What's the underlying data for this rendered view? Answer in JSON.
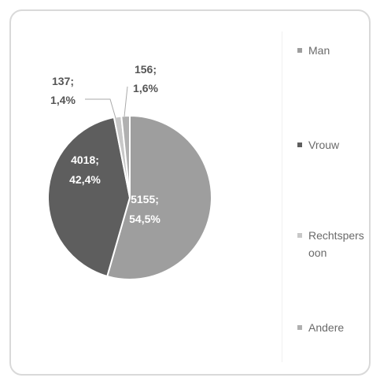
{
  "chart_data": {
    "type": "pie",
    "title": "",
    "legend_position": "right",
    "slices": [
      {
        "name": "Man",
        "value": 5155,
        "percent_label": "54,5%",
        "value_label": "5155;",
        "color": "#9e9e9e",
        "label_color": "#ffffff"
      },
      {
        "name": "Vrouw",
        "value": 4018,
        "percent_label": "42,4%",
        "value_label": "4018;",
        "color": "#5e5e5e",
        "label_color": "#ffffff"
      },
      {
        "name": "Rechtspersoon",
        "value": 137,
        "percent_label": "1,4%",
        "value_label": "137;",
        "color": "#c8c8c8",
        "label_color": "#555555"
      },
      {
        "name": "Andere",
        "value": 156,
        "percent_label": "1,6%",
        "value_label": "156;",
        "color": "#b0b0b0",
        "label_color": "#555555"
      }
    ]
  },
  "legend": {
    "items": [
      {
        "label": "Man",
        "color": "#9e9e9e"
      },
      {
        "label": "Vrouw",
        "color": "#5e5e5e"
      },
      {
        "label": "Rechtspersoon",
        "color": "#c8c8c8"
      },
      {
        "label": "Andere",
        "color": "#b0b0b0"
      }
    ]
  }
}
